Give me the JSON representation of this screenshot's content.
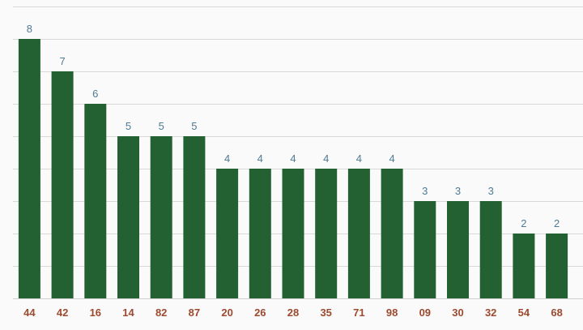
{
  "chart_data": {
    "type": "bar",
    "title": "",
    "xlabel": "",
    "ylabel": "",
    "categories": [
      "44",
      "42",
      "16",
      "14",
      "82",
      "87",
      "20",
      "26",
      "28",
      "35",
      "71",
      "98",
      "09",
      "30",
      "32",
      "54",
      "68"
    ],
    "values": [
      8,
      7,
      6,
      5,
      5,
      5,
      4,
      4,
      4,
      4,
      4,
      4,
      3,
      3,
      3,
      2,
      2
    ],
    "ylim": [
      0,
      9
    ],
    "grid": true,
    "legend": "none",
    "data_labels": true
  },
  "colors": {
    "bar": "#246132",
    "value_label": "#4f7a94",
    "tick_label": "#9c4a2f",
    "background": "#fafafa"
  }
}
